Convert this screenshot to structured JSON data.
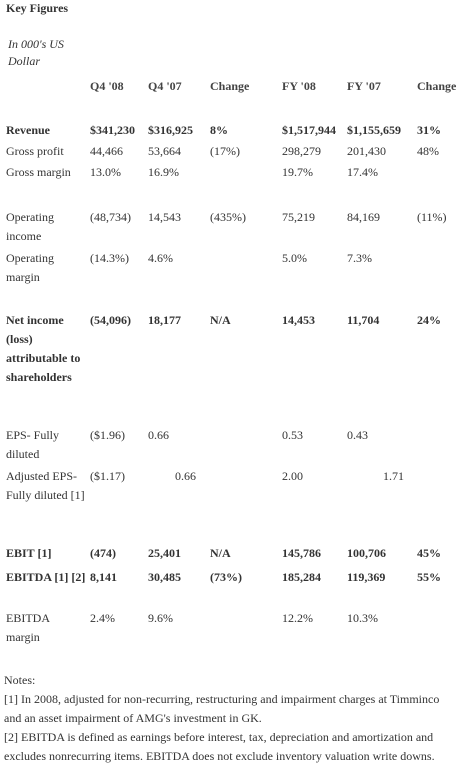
{
  "title": "Key Figures",
  "subtitle": "In 000's US Dollar",
  "table": {
    "columns": [
      "Q4 '08",
      "Q4 '07",
      "Change",
      "FY '08",
      "FY '07",
      "Change"
    ],
    "rows": [
      [
        "Revenue",
        "$341,230",
        "$316,925",
        "8%",
        "$1,517,944",
        "$1,155,659",
        "31%"
      ],
      [
        "Gross profit",
        "44,466",
        "53,664",
        "(17%)",
        "298,279",
        "201,430",
        "48%"
      ],
      [
        "Gross margin",
        "13.0%",
        "16.9%",
        null,
        "19.7%",
        "17.4%",
        null
      ],
      [
        "Operating income",
        "(48,734)",
        "14,543",
        "(435%)",
        "75,219",
        "84,169",
        "(11%)"
      ],
      [
        "Operating margin",
        "(14.3%)",
        "4.6%",
        null,
        "5.0%",
        "7.3%",
        null
      ],
      [
        "Net income (loss) attributable to shareholders",
        "(54,096)",
        "18,177",
        "N/A",
        "14,453",
        "11,704",
        "24%"
      ],
      [
        "EPS- Fully diluted",
        "($1.96)",
        "0.66",
        null,
        "0.53",
        "0.43",
        null
      ],
      [
        "Adjusted EPS-Fully diluted [1]",
        "($1.17)",
        "0.66",
        null,
        "2.00",
        "1.71",
        null
      ],
      [
        "EBIT [1]",
        "(474)",
        "25,401",
        "N/A",
        "145,786",
        "100,706",
        "45%"
      ],
      [
        "EBITDA [1] [2]",
        "8,141",
        "30,485",
        "(73%)",
        "185,284",
        "119,369",
        "55%"
      ],
      [
        "EBITDA margin",
        "2.4%",
        "9.6%",
        null,
        "12.2%",
        "10.3%",
        null
      ]
    ]
  },
  "notes": {
    "heading": "Notes:",
    "items": [
      "[1] In 2008, adjusted for non-recurring, restructuring and impairment charges at Timminco and an asset impairment of AMG's investment in GK.",
      "[2] EBITDA is defined as earnings before interest, tax, depreciation and amortization and excludes nonrecurring items. EBITDA does not exclude inventory valuation write downs."
    ]
  }
}
